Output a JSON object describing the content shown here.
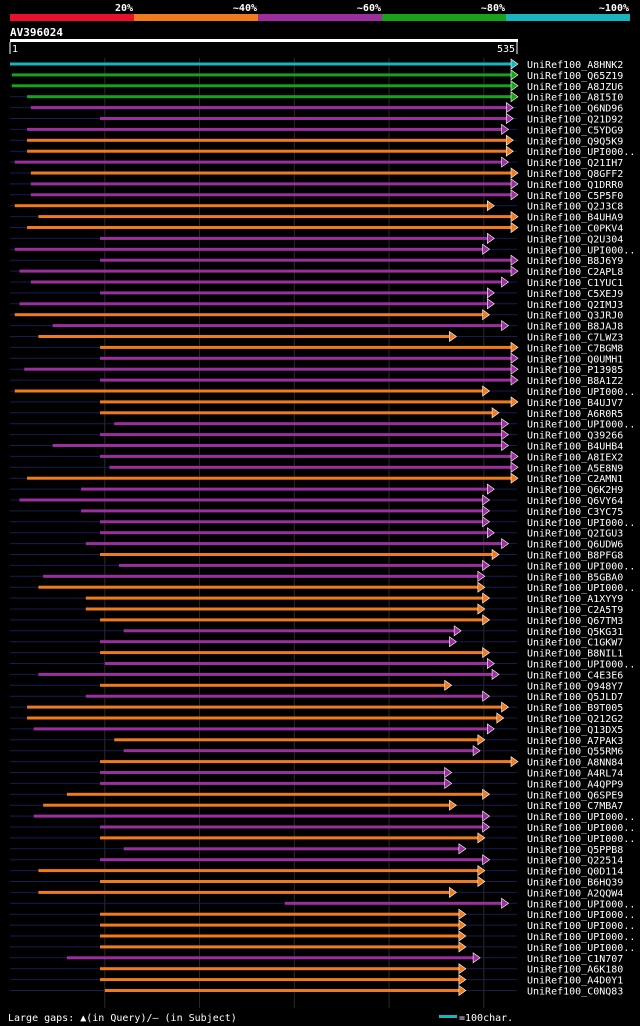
{
  "legend": {
    "labels": [
      "20%",
      "~40%",
      "~60%",
      "~80%",
      "~100%"
    ],
    "colors": [
      "#e8102a",
      "#f07b1e",
      "#9c2fa0",
      "#1aa11a",
      "#1ab4be"
    ]
  },
  "query": {
    "name": "AV396024",
    "start_label": "1",
    "end_label": "535",
    "length": 535
  },
  "hits": [
    {
      "label": "UniRef100_A8HNK2",
      "color": "#1ab4be",
      "start": 0,
      "end": 535
    },
    {
      "label": "UniRef100_Q65Z19",
      "color": "#1aa11a",
      "start": 2,
      "end": 535
    },
    {
      "label": "UniRef100_A8JZU6",
      "color": "#1aa11a",
      "start": 2,
      "end": 535
    },
    {
      "label": "UniRef100_A8I5I0",
      "color": "#1aa11a",
      "start": 18,
      "end": 535
    },
    {
      "label": "UniRef100_Q6ND96",
      "color": "#9c2fa0",
      "start": 22,
      "end": 530
    },
    {
      "label": "UniRef100_Q21D92",
      "color": "#9c2fa0",
      "start": 95,
      "end": 530
    },
    {
      "label": "UniRef100_C5YDG9",
      "color": "#9c2fa0",
      "start": 18,
      "end": 525
    },
    {
      "label": "UniRef100_Q9Q5K9",
      "color": "#f07b1e",
      "start": 18,
      "end": 530
    },
    {
      "label": "UniRef100_UPI000..",
      "color": "#f07b1e",
      "start": 18,
      "end": 530
    },
    {
      "label": "UniRef100_Q21IH7",
      "color": "#9c2fa0",
      "start": 5,
      "end": 525
    },
    {
      "label": "UniRef100_Q8GFF2",
      "color": "#f07b1e",
      "start": 22,
      "end": 535
    },
    {
      "label": "UniRef100_Q1DRR0",
      "color": "#9c2fa0",
      "start": 22,
      "end": 535
    },
    {
      "label": "UniRef100_C5P5F0",
      "color": "#9c2fa0",
      "start": 22,
      "end": 535
    },
    {
      "label": "UniRef100_Q2J3C8",
      "color": "#f07b1e",
      "start": 5,
      "end": 510
    },
    {
      "label": "UniRef100_B4UHA9",
      "color": "#f07b1e",
      "start": 30,
      "end": 535
    },
    {
      "label": "UniRef100_C0PKV4",
      "color": "#f07b1e",
      "start": 18,
      "end": 535
    },
    {
      "label": "UniRef100_Q2U304",
      "color": "#9c2fa0",
      "start": 95,
      "end": 510
    },
    {
      "label": "UniRef100_UPI000..",
      "color": "#9c2fa0",
      "start": 5,
      "end": 505
    },
    {
      "label": "UniRef100_B8J6Y9",
      "color": "#9c2fa0",
      "start": 95,
      "end": 535
    },
    {
      "label": "UniRef100_C2APL8",
      "color": "#9c2fa0",
      "start": 10,
      "end": 535
    },
    {
      "label": "UniRef100_C1YUC1",
      "color": "#9c2fa0",
      "start": 22,
      "end": 525
    },
    {
      "label": "UniRef100_C5XEJ9",
      "color": "#9c2fa0",
      "start": 95,
      "end": 510
    },
    {
      "label": "UniRef100_Q2IMJ3",
      "color": "#9c2fa0",
      "start": 10,
      "end": 510
    },
    {
      "label": "UniRef100_Q3JRJ0",
      "color": "#f07b1e",
      "start": 5,
      "end": 505
    },
    {
      "label": "UniRef100_B8JAJ8",
      "color": "#9c2fa0",
      "start": 45,
      "end": 525
    },
    {
      "label": "UniRef100_C7LWZ3",
      "color": "#f07b1e",
      "start": 30,
      "end": 470
    },
    {
      "label": "UniRef100_C7BGM8",
      "color": "#f07b1e",
      "start": 95,
      "end": 535
    },
    {
      "label": "UniRef100_Q0UMH1",
      "color": "#9c2fa0",
      "start": 95,
      "end": 535
    },
    {
      "label": "UniRef100_P13985",
      "color": "#9c2fa0",
      "start": 15,
      "end": 535
    },
    {
      "label": "UniRef100_B8A1Z2",
      "color": "#9c2fa0",
      "start": 95,
      "end": 535
    },
    {
      "label": "UniRef100_UPI000..",
      "color": "#f07b1e",
      "start": 5,
      "end": 505
    },
    {
      "label": "UniRef100_B4UJV7",
      "color": "#f07b1e",
      "start": 95,
      "end": 535
    },
    {
      "label": "UniRef100_A6R0R5",
      "color": "#f07b1e",
      "start": 95,
      "end": 515
    },
    {
      "label": "UniRef100_UPI000..",
      "color": "#9c2fa0",
      "start": 110,
      "end": 525
    },
    {
      "label": "UniRef100_Q39266",
      "color": "#9c2fa0",
      "start": 95,
      "end": 525
    },
    {
      "label": "UniRef100_B4UHB4",
      "color": "#9c2fa0",
      "start": 45,
      "end": 525
    },
    {
      "label": "UniRef100_A8IEX2",
      "color": "#9c2fa0",
      "start": 95,
      "end": 535
    },
    {
      "label": "UniRef100_A5E8N9",
      "color": "#9c2fa0",
      "start": 105,
      "end": 535
    },
    {
      "label": "UniRef100_C2AMN1",
      "color": "#f07b1e",
      "start": 18,
      "end": 535
    },
    {
      "label": "UniRef100_Q6K2H9",
      "color": "#9c2fa0",
      "start": 75,
      "end": 510
    },
    {
      "label": "UniRef100_Q6VY64",
      "color": "#9c2fa0",
      "start": 10,
      "end": 505
    },
    {
      "label": "UniRef100_C3YC75",
      "color": "#9c2fa0",
      "start": 75,
      "end": 505
    },
    {
      "label": "UniRef100_UPI000..",
      "color": "#9c2fa0",
      "start": 95,
      "end": 505
    },
    {
      "label": "UniRef100_Q2IGU3",
      "color": "#9c2fa0",
      "start": 95,
      "end": 510
    },
    {
      "label": "UniRef100_Q6UDW6",
      "color": "#9c2fa0",
      "start": 80,
      "end": 525
    },
    {
      "label": "UniRef100_B8PFG8",
      "color": "#f07b1e",
      "start": 95,
      "end": 515
    },
    {
      "label": "UniRef100_UPI000..",
      "color": "#9c2fa0",
      "start": 115,
      "end": 505
    },
    {
      "label": "UniRef100_B5GBA0",
      "color": "#9c2fa0",
      "start": 35,
      "end": 500
    },
    {
      "label": "UniRef100_UPI000..",
      "color": "#f07b1e",
      "start": 30,
      "end": 500
    },
    {
      "label": "UniRef100_A1XYY9",
      "color": "#f07b1e",
      "start": 80,
      "end": 505
    },
    {
      "label": "UniRef100_C2A5T9",
      "color": "#f07b1e",
      "start": 80,
      "end": 500
    },
    {
      "label": "UniRef100_Q67TM3",
      "color": "#f07b1e",
      "start": 95,
      "end": 505
    },
    {
      "label": "UniRef100_Q5KG31",
      "color": "#9c2fa0",
      "start": 120,
      "end": 475
    },
    {
      "label": "UniRef100_C1GKW7",
      "color": "#9c2fa0",
      "start": 95,
      "end": 470
    },
    {
      "label": "UniRef100_B8NIL1",
      "color": "#f07b1e",
      "start": 95,
      "end": 505
    },
    {
      "label": "UniRef100_UPI000..",
      "color": "#9c2fa0",
      "start": 100,
      "end": 510
    },
    {
      "label": "UniRef100_C4E3E6",
      "color": "#9c2fa0",
      "start": 30,
      "end": 515
    },
    {
      "label": "UniRef100_Q948Y7",
      "color": "#f07b1e",
      "start": 95,
      "end": 465
    },
    {
      "label": "UniRef100_Q5JLD7",
      "color": "#9c2fa0",
      "start": 80,
      "end": 505
    },
    {
      "label": "UniRef100_B9T005",
      "color": "#f07b1e",
      "start": 18,
      "end": 525
    },
    {
      "label": "UniRef100_Q212G2",
      "color": "#f07b1e",
      "start": 18,
      "end": 520
    },
    {
      "label": "UniRef100_Q13DX5",
      "color": "#9c2fa0",
      "start": 25,
      "end": 510
    },
    {
      "label": "UniRef100_A7PAK3",
      "color": "#f07b1e",
      "start": 110,
      "end": 500
    },
    {
      "label": "UniRef100_Q55RM6",
      "color": "#9c2fa0",
      "start": 120,
      "end": 495
    },
    {
      "label": "UniRef100_A8NN84",
      "color": "#f07b1e",
      "start": 95,
      "end": 535
    },
    {
      "label": "UniRef100_A4RL74",
      "color": "#9c2fa0",
      "start": 95,
      "end": 465
    },
    {
      "label": "UniRef100_A4QPP9",
      "color": "#9c2fa0",
      "start": 95,
      "end": 465
    },
    {
      "label": "UniRef100_Q6SPE9",
      "color": "#f07b1e",
      "start": 60,
      "end": 505
    },
    {
      "label": "UniRef100_C7MBA7",
      "color": "#f07b1e",
      "start": 35,
      "end": 470
    },
    {
      "label": "UniRef100_UPI000..",
      "color": "#9c2fa0",
      "start": 25,
      "end": 505
    },
    {
      "label": "UniRef100_UPI000..",
      "color": "#9c2fa0",
      "start": 95,
      "end": 505
    },
    {
      "label": "UniRef100_UPI000..",
      "color": "#f07b1e",
      "start": 95,
      "end": 500
    },
    {
      "label": "UniRef100_Q5PPB8",
      "color": "#9c2fa0",
      "start": 120,
      "end": 480
    },
    {
      "label": "UniRef100_Q22514",
      "color": "#9c2fa0",
      "start": 95,
      "end": 505
    },
    {
      "label": "UniRef100_Q0D114",
      "color": "#f07b1e",
      "start": 30,
      "end": 500
    },
    {
      "label": "UniRef100_B6HQ39",
      "color": "#f07b1e",
      "start": 95,
      "end": 500
    },
    {
      "label": "UniRef100_A2QQW4",
      "color": "#f07b1e",
      "start": 30,
      "end": 470
    },
    {
      "label": "UniRef100_UPI000..",
      "color": "#9c2fa0",
      "start": 290,
      "end": 525
    },
    {
      "label": "UniRef100_UPI000..",
      "color": "#f07b1e",
      "start": 95,
      "end": 480
    },
    {
      "label": "UniRef100_UPI000..",
      "color": "#f07b1e",
      "start": 95,
      "end": 480
    },
    {
      "label": "UniRef100_UPI000..",
      "color": "#f07b1e",
      "start": 95,
      "end": 480
    },
    {
      "label": "UniRef100_UPI000..",
      "color": "#f07b1e",
      "start": 95,
      "end": 480
    },
    {
      "label": "UniRef100_C1N707",
      "color": "#9c2fa0",
      "start": 60,
      "end": 495
    },
    {
      "label": "UniRef100_A6K180",
      "color": "#f07b1e",
      "start": 95,
      "end": 480
    },
    {
      "label": "UniRef100_A4D0Y1",
      "color": "#f07b1e",
      "start": 95,
      "end": 480
    },
    {
      "label": "UniRef100_C0NQ83",
      "color": "#f07b1e",
      "start": 100,
      "end": 480
    }
  ],
  "footer": {
    "gaps_text": "Large gaps: ▲(in Query)/– (in Subject)",
    "scale_text": "=100char."
  }
}
